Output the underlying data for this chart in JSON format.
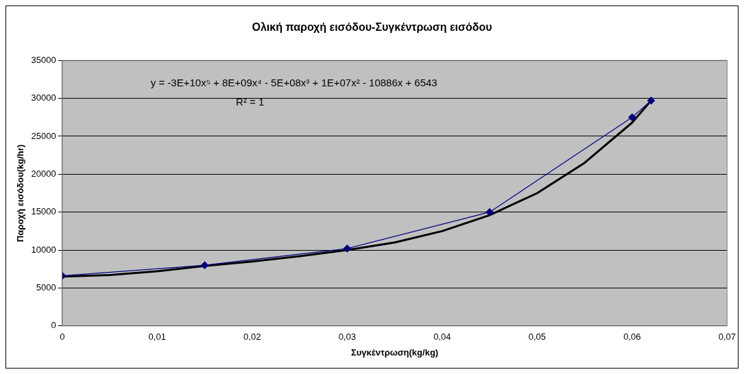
{
  "chart_data": {
    "type": "line",
    "title": "Ολική παροχή εισόδου-Συγκέντρωση εισόδου",
    "xlabel": "Συγκέντρωση(kg/kg)",
    "ylabel": "Παροχή εισόδου(kg/hr)",
    "annotations": [
      "y = -3E+10x⁵ + 8E+09x⁴ - 5E+08x³ + 1E+07x² - 10886x + 6543",
      "R² = 1"
    ],
    "series": [
      {
        "color": "#000080",
        "marker": "diamond",
        "line_style": "solid",
        "x": [
          0,
          0.015,
          0.03,
          0.045,
          0.06,
          0.062
        ],
        "values": [
          6600,
          8000,
          10200,
          15000,
          27500,
          29700
        ]
      },
      {
        "color": "#000000",
        "marker": "none",
        "line_style": "solid",
        "x": [
          0,
          0.005,
          0.01,
          0.015,
          0.02,
          0.025,
          0.03,
          0.035,
          0.04,
          0.045,
          0.05,
          0.055,
          0.06,
          0.062
        ],
        "values": [
          6500,
          6700,
          7200,
          7900,
          8500,
          9200,
          10000,
          11000,
          12500,
          14600,
          17500,
          21500,
          26800,
          29700
        ]
      }
    ],
    "xlim": [
      0,
      0.07
    ],
    "xticks": [
      {
        "value": 0,
        "label": "0"
      },
      {
        "value": 0.01,
        "label": "0,01"
      },
      {
        "value": 0.02,
        "label": "0,02"
      },
      {
        "value": 0.03,
        "label": "0,03"
      },
      {
        "value": 0.04,
        "label": "0,04"
      },
      {
        "value": 0.05,
        "label": "0,05"
      },
      {
        "value": 0.06,
        "label": "0,06"
      },
      {
        "value": 0.07,
        "label": "0,07"
      }
    ],
    "ylim": [
      0,
      35000
    ],
    "yticks": [
      0,
      5000,
      10000,
      15000,
      20000,
      25000,
      30000,
      35000
    ],
    "grid": "y",
    "legend": false
  }
}
